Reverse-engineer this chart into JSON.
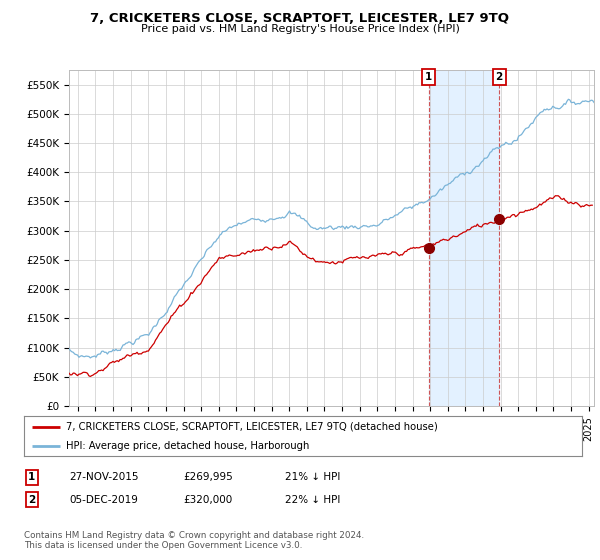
{
  "title": "7, CRICKETERS CLOSE, SCRAPTOFT, LEICESTER, LE7 9TQ",
  "subtitle": "Price paid vs. HM Land Registry's House Price Index (HPI)",
  "ylabel_ticks": [
    "£0",
    "£50K",
    "£100K",
    "£150K",
    "£200K",
    "£250K",
    "£300K",
    "£350K",
    "£400K",
    "£450K",
    "£500K",
    "£550K"
  ],
  "ylim": [
    0,
    575000
  ],
  "xlim_start": 1995.5,
  "xlim_end": 2025.3,
  "hpi_color": "#7ab4d8",
  "price_color": "#cc0000",
  "marker_color": "#8b0000",
  "shade_color": "#ddeeff",
  "purchase1_date": 2015.91,
  "purchase1_price": 269995,
  "purchase2_date": 2019.92,
  "purchase2_price": 320000,
  "legend_line1": "7, CRICKETERS CLOSE, SCRAPTOFT, LEICESTER, LE7 9TQ (detached house)",
  "legend_line2": "HPI: Average price, detached house, Harborough",
  "table_row1": [
    "1",
    "27-NOV-2015",
    "£269,995",
    "21% ↓ HPI"
  ],
  "table_row2": [
    "2",
    "05-DEC-2019",
    "£320,000",
    "22% ↓ HPI"
  ],
  "footnote": "Contains HM Land Registry data © Crown copyright and database right 2024.\nThis data is licensed under the Open Government Licence v3.0.",
  "bg_color": "#ffffff",
  "grid_color": "#cccccc"
}
